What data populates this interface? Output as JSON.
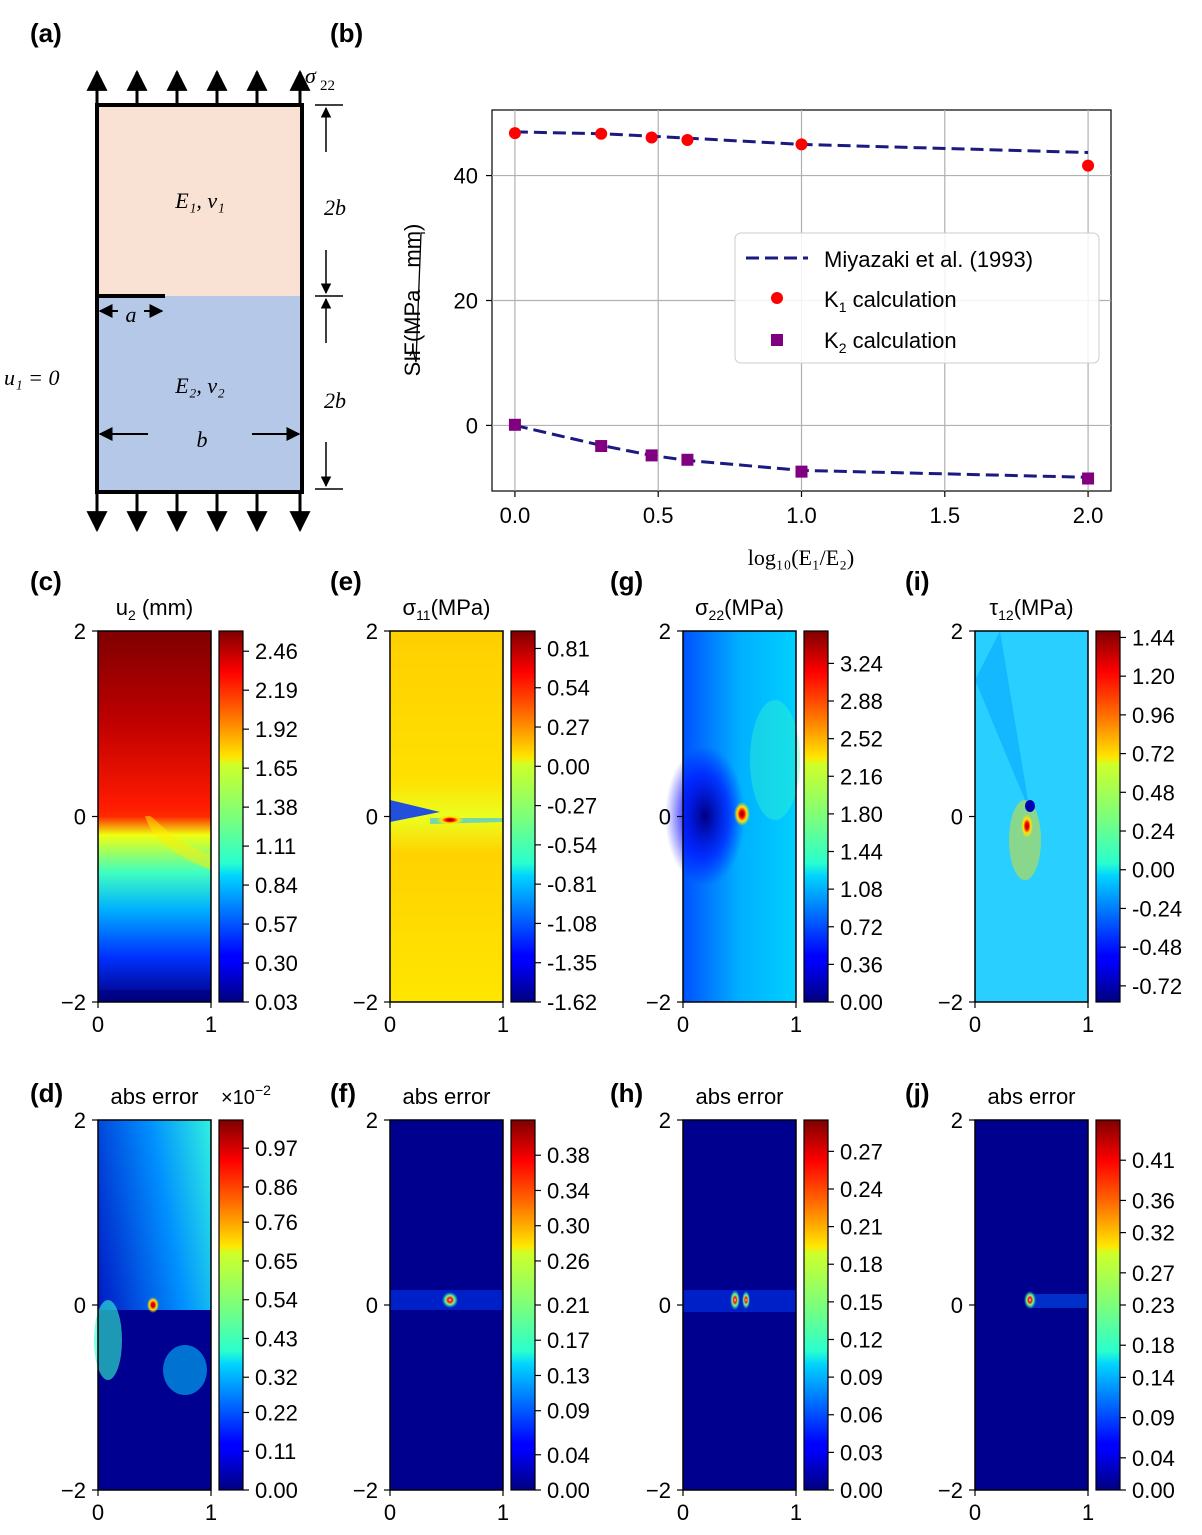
{
  "panel_labels": {
    "a": "(a)",
    "b": "(b)",
    "c": "(c)",
    "d": "(d)",
    "e": "(e)",
    "f": "(f)",
    "g": "(g)",
    "h": "(h)",
    "i": "(i)",
    "j": "(j)"
  },
  "diagram": {
    "sigma_label": "σ",
    "sigma_sub": "22",
    "upper_material": "E₁, ν₁",
    "lower_material": "E₂, ν₂",
    "crack_label": "a",
    "width_label": "b",
    "height_upper": "2b",
    "height_lower": "2b",
    "bc_label": "u₁ = 0"
  },
  "colors": {
    "upper_fill": "#f9e1d4",
    "lower_fill": "#b5c8e8",
    "line_color": "#1a1a80",
    "k1_color": "#ff0000",
    "k2_color": "#800080",
    "grid": "#b0b0b0"
  },
  "chart_data": [
    {
      "id": "b",
      "type": "line",
      "xlabel": "log₁₀(E₁/E₂)",
      "ylabel_prefix": "SIF(MPa",
      "ylabel_root": "mm",
      "xlim": [
        -0.08,
        2.08
      ],
      "ylim": [
        -10.5,
        50.5
      ],
      "xticks": [
        0.0,
        0.5,
        1.0,
        1.5,
        2.0
      ],
      "xtick_labels": [
        "0.0",
        "0.5",
        "1.0",
        "1.5",
        "2.0"
      ],
      "yticks": [
        0,
        20,
        40
      ],
      "ytick_labels": [
        "0",
        "20",
        "40"
      ],
      "grid": true,
      "legend_position": "center-right",
      "series": [
        {
          "name": "Miyazaki et al. (1993)",
          "style": "dashed-line",
          "x": [
            0.0,
            0.301,
            0.477,
            0.602,
            1.0,
            2.0
          ],
          "y": [
            47.0,
            46.7,
            46.3,
            46.0,
            45.0,
            43.7
          ]
        },
        {
          "name": "Miyazaki et al. (1993)",
          "style": "dashed-line",
          "x": [
            0.0,
            0.301,
            0.477,
            0.602,
            1.0,
            2.0
          ],
          "y": [
            0.0,
            -3.2,
            -4.8,
            -5.6,
            -7.2,
            -8.3
          ]
        },
        {
          "name": "K₁ calculation",
          "name_main": "K",
          "name_sub": "1",
          "name_rest": " calculation",
          "style": "circle-marker",
          "x": [
            0.0,
            0.301,
            0.477,
            0.602,
            1.0,
            2.0
          ],
          "y": [
            46.8,
            46.7,
            46.1,
            45.7,
            45.0,
            41.6
          ]
        },
        {
          "name": "K₂ calculation",
          "name_main": "K",
          "name_sub": "2",
          "name_rest": " calculation",
          "style": "square-marker",
          "x": [
            0.0,
            0.301,
            0.477,
            0.602,
            1.0,
            2.0
          ],
          "y": [
            0.1,
            -3.3,
            -4.8,
            -5.5,
            -7.4,
            -8.5
          ]
        }
      ],
      "legend": [
        "Miyazaki et al. (1993)",
        "K₁ calculation",
        "K₂ calculation"
      ]
    },
    {
      "id": "c",
      "type": "heatmap",
      "title": "u₂ (mm)",
      "title_main": "u",
      "title_sub": "2",
      "title_rest": " (mm)",
      "colorbar_ticks": [
        "2.46",
        "2.19",
        "1.92",
        "1.65",
        "1.38",
        "1.11",
        "0.84",
        "0.57",
        "0.30",
        "0.03"
      ],
      "colorbar_range": [
        0.03,
        2.6
      ],
      "x_ticks": [
        "0",
        "1"
      ],
      "y_ticks": [
        "2",
        "0",
        "−2"
      ]
    },
    {
      "id": "e",
      "type": "heatmap",
      "title": "σ₁₁(MPa)",
      "title_main": "σ",
      "title_sub": "11",
      "title_rest": "(MPa)",
      "colorbar_ticks": [
        "0.81",
        "0.54",
        "0.27",
        "0.00",
        "-0.27",
        "-0.54",
        "-0.81",
        "-1.08",
        "-1.35",
        "-1.62"
      ],
      "colorbar_range": [
        -1.62,
        0.93
      ],
      "x_ticks": [
        "0",
        "1"
      ],
      "y_ticks": [
        "2",
        "0",
        "−2"
      ]
    },
    {
      "id": "g",
      "type": "heatmap",
      "title": "σ₂₂(MPa)",
      "title_main": "σ",
      "title_sub": "22",
      "title_rest": "(MPa)",
      "colorbar_ticks": [
        "3.24",
        "2.88",
        "2.52",
        "2.16",
        "1.80",
        "1.44",
        "1.08",
        "0.72",
        "0.36",
        "0.00"
      ],
      "colorbar_range": [
        0.0,
        3.55
      ],
      "x_ticks": [
        "0",
        "1"
      ],
      "y_ticks": [
        "2",
        "0",
        "−2"
      ]
    },
    {
      "id": "i",
      "type": "heatmap",
      "title": "τ₁₂(MPa)",
      "title_main": "τ",
      "title_sub": "12",
      "title_rest": "(MPa)",
      "colorbar_ticks": [
        "1.44",
        "1.20",
        "0.96",
        "0.72",
        "0.48",
        "0.24",
        "0.00",
        "-0.24",
        "-0.48",
        "-0.72"
      ],
      "colorbar_range": [
        -0.82,
        1.48
      ],
      "x_ticks": [
        "0",
        "1"
      ],
      "y_ticks": [
        "2",
        "0",
        "−2"
      ]
    },
    {
      "id": "d",
      "type": "heatmap",
      "title": "abs error",
      "scale_label": "×10",
      "scale_exp": "−2",
      "colorbar_ticks": [
        "0.97",
        "0.86",
        "0.76",
        "0.65",
        "0.54",
        "0.43",
        "0.32",
        "0.22",
        "0.11",
        "0.00"
      ],
      "colorbar_range": [
        0.0,
        1.05
      ],
      "x_ticks": [
        "0",
        "1"
      ],
      "y_ticks": [
        "2",
        "0",
        "−2"
      ]
    },
    {
      "id": "f",
      "type": "heatmap",
      "title": "abs error",
      "colorbar_ticks": [
        "0.38",
        "0.34",
        "0.30",
        "0.26",
        "0.21",
        "0.17",
        "0.13",
        "0.09",
        "0.04",
        "0.00"
      ],
      "colorbar_range": [
        0.0,
        0.42
      ],
      "x_ticks": [
        "0",
        "1"
      ],
      "y_ticks": [
        "2",
        "0",
        "−2"
      ]
    },
    {
      "id": "h",
      "type": "heatmap",
      "title": "abs error",
      "colorbar_ticks": [
        "0.27",
        "0.24",
        "0.21",
        "0.18",
        "0.15",
        "0.12",
        "0.09",
        "0.06",
        "0.03",
        "0.00"
      ],
      "colorbar_range": [
        0.0,
        0.295
      ],
      "x_ticks": [
        "0",
        "1"
      ],
      "y_ticks": [
        "2",
        "0",
        "−2"
      ]
    },
    {
      "id": "j",
      "type": "heatmap",
      "title": "abs error",
      "colorbar_ticks": [
        "0.41",
        "0.36",
        "0.32",
        "0.27",
        "0.23",
        "0.18",
        "0.14",
        "0.09",
        "0.04",
        "0.00"
      ],
      "colorbar_range": [
        0.0,
        0.46
      ],
      "x_ticks": [
        "0",
        "1"
      ],
      "y_ticks": [
        "2",
        "0",
        "−2"
      ]
    }
  ]
}
